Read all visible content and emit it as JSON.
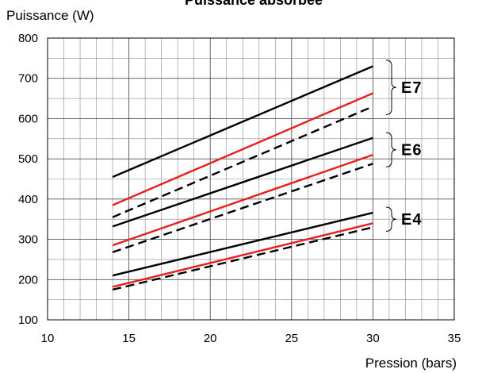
{
  "chart_data": {
    "type": "line",
    "title": "Puissance absorbée",
    "ylabel": "Puissance (W)",
    "xlabel": "Pression (bars)",
    "xlim": [
      10,
      35
    ],
    "ylim": [
      100,
      800
    ],
    "x_ticks": [
      10,
      15,
      20,
      25,
      30,
      35
    ],
    "y_ticks": [
      100,
      200,
      300,
      400,
      500,
      600,
      700,
      800
    ],
    "grid": true,
    "legend": "none",
    "colors": {
      "black": "#000000",
      "red": "#e8201c"
    },
    "series": [
      {
        "group": "E7",
        "color": "black",
        "dash": "solid",
        "x": [
          14,
          30
        ],
        "y": [
          455,
          730
        ]
      },
      {
        "group": "E7",
        "color": "red",
        "dash": "solid",
        "x": [
          14,
          30
        ],
        "y": [
          385,
          663
        ]
      },
      {
        "group": "E7",
        "color": "black",
        "dash": "dashed",
        "x": [
          14,
          30
        ],
        "y": [
          355,
          630
        ]
      },
      {
        "group": "E6",
        "color": "black",
        "dash": "solid",
        "x": [
          14,
          30
        ],
        "y": [
          332,
          552
        ]
      },
      {
        "group": "E6",
        "color": "red",
        "dash": "solid",
        "x": [
          14,
          30
        ],
        "y": [
          285,
          510
        ]
      },
      {
        "group": "E6",
        "color": "black",
        "dash": "dashed",
        "x": [
          14,
          30
        ],
        "y": [
          268,
          488
        ]
      },
      {
        "group": "E4",
        "color": "black",
        "dash": "solid",
        "x": [
          14,
          30
        ],
        "y": [
          210,
          366
        ]
      },
      {
        "group": "E4",
        "color": "red",
        "dash": "solid",
        "x": [
          14,
          30
        ],
        "y": [
          182,
          340
        ]
      },
      {
        "group": "E4",
        "color": "black",
        "dash": "dashed",
        "x": [
          14,
          30
        ],
        "y": [
          175,
          330
        ]
      }
    ],
    "annotations": [
      {
        "label": "E7",
        "range": [
          610,
          745
        ]
      },
      {
        "label": "E6",
        "range": [
          480,
          565
        ]
      },
      {
        "label": "E4",
        "range": [
          320,
          380
        ]
      }
    ]
  }
}
